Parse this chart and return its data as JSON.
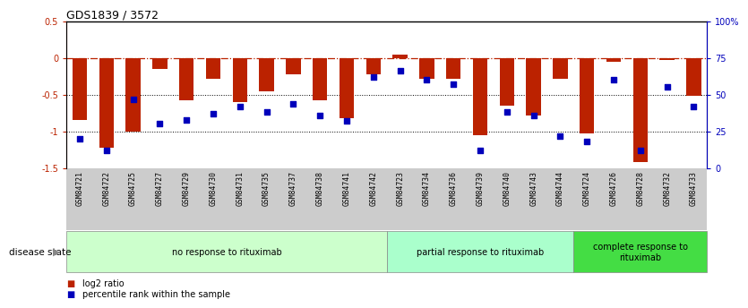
{
  "title": "GDS1839 / 3572",
  "samples": [
    "GSM84721",
    "GSM84722",
    "GSM84725",
    "GSM84727",
    "GSM84729",
    "GSM84730",
    "GSM84731",
    "GSM84735",
    "GSM84737",
    "GSM84738",
    "GSM84741",
    "GSM84742",
    "GSM84723",
    "GSM84734",
    "GSM84736",
    "GSM84739",
    "GSM84740",
    "GSM84743",
    "GSM84744",
    "GSM84724",
    "GSM84726",
    "GSM84728",
    "GSM84732",
    "GSM84733"
  ],
  "log2_ratio": [
    -0.85,
    -1.22,
    -1.0,
    -0.15,
    -0.58,
    -0.28,
    -0.6,
    -0.45,
    -0.22,
    -0.58,
    -0.82,
    -0.22,
    0.05,
    -0.28,
    -0.28,
    -1.05,
    -0.65,
    -0.78,
    -0.28,
    -1.03,
    -0.05,
    -1.42,
    -0.03,
    -0.52
  ],
  "percentile": [
    20,
    12,
    47,
    30,
    33,
    37,
    42,
    38,
    44,
    36,
    32,
    62,
    66,
    60,
    57,
    12,
    38,
    36,
    22,
    18,
    60,
    12,
    55,
    42
  ],
  "group_labels": [
    "no response to rituximab",
    "partial response to rituximab",
    "complete response to\nrituximab"
  ],
  "group_starts": [
    0,
    12,
    19
  ],
  "group_ends": [
    12,
    19,
    24
  ],
  "group_colors": [
    "#ccffcc",
    "#aaffcc",
    "#44dd44"
  ],
  "bar_color": "#bb2200",
  "dot_color": "#0000bb",
  "ylim_left": [
    -1.5,
    0.5
  ],
  "ylim_right": [
    0,
    100
  ],
  "yticks_left": [
    -1.5,
    -1.0,
    -0.5,
    0.0,
    0.5
  ],
  "ytick_labels_left": [
    "-1.5",
    "-1",
    "-0.5",
    "0",
    "0.5"
  ],
  "yticks_right": [
    0,
    25,
    50,
    75,
    100
  ],
  "ytick_labels_right": [
    "0",
    "25",
    "50",
    "75",
    "100%"
  ],
  "hline_y": 0.0,
  "dotted_lines": [
    -0.5,
    -1.0
  ],
  "disease_state_label": "disease state",
  "legend_items": [
    "log2 ratio",
    "percentile rank within the sample"
  ],
  "label_bg_color": "#cccccc",
  "fig_bg": "#ffffff"
}
